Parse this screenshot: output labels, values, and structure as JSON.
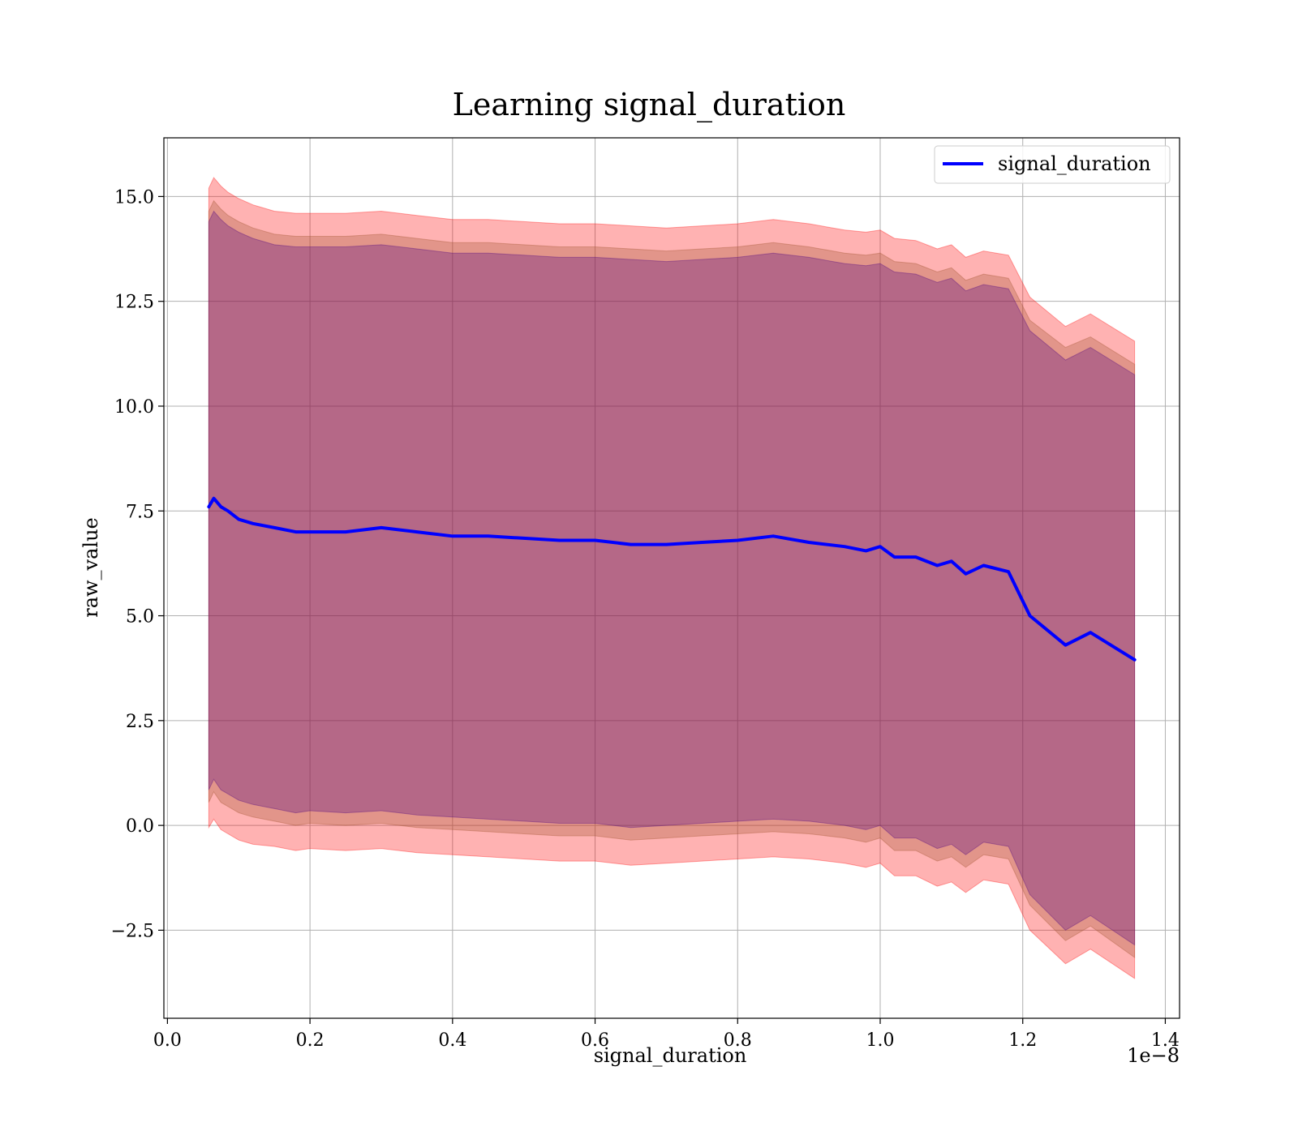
{
  "chart_data": {
    "type": "line",
    "title": "Learning signal_duration",
    "xlabel": "signal_duration",
    "ylabel": "raw_value",
    "x_offset_text": "1e−8",
    "xlim": [
      -0.005,
      1.42
    ],
    "ylim": [
      -4.6,
      16.4
    ],
    "x_ticks": [
      0.0,
      0.2,
      0.4,
      0.6,
      0.8,
      1.0,
      1.2,
      1.4
    ],
    "x_tick_labels": [
      "0.0",
      "0.2",
      "0.4",
      "0.6",
      "0.8",
      "1.0",
      "1.2",
      "1.4"
    ],
    "y_ticks": [
      -2.5,
      0.0,
      2.5,
      5.0,
      7.5,
      10.0,
      12.5,
      15.0
    ],
    "y_tick_labels": [
      "−2.5",
      "0.0",
      "2.5",
      "5.0",
      "7.5",
      "10.0",
      "12.5",
      "15.0"
    ],
    "grid": true,
    "legend": {
      "position": "top-right",
      "entries": [
        "signal_duration"
      ]
    },
    "colors": {
      "line": "#0000ff",
      "band_outer": "#ff0000",
      "band_middle": "#a0522d",
      "band_inner": "#4b0082",
      "grid": "#b0b0b0"
    },
    "series": [
      {
        "name": "signal_duration",
        "x": [
          0.058,
          0.065,
          0.075,
          0.085,
          0.1,
          0.12,
          0.15,
          0.18,
          0.2,
          0.25,
          0.3,
          0.35,
          0.4,
          0.45,
          0.5,
          0.55,
          0.6,
          0.65,
          0.7,
          0.75,
          0.8,
          0.85,
          0.9,
          0.95,
          0.98,
          1.0,
          1.02,
          1.05,
          1.08,
          1.1,
          1.12,
          1.145,
          1.18,
          1.21,
          1.26,
          1.295,
          1.357
        ],
        "y": [
          7.6,
          7.8,
          7.6,
          7.5,
          7.3,
          7.2,
          7.1,
          7.0,
          7.0,
          7.0,
          7.1,
          7.0,
          6.9,
          6.9,
          6.85,
          6.8,
          6.8,
          6.7,
          6.7,
          6.75,
          6.8,
          6.9,
          6.75,
          6.65,
          6.55,
          6.65,
          6.4,
          6.4,
          6.2,
          6.3,
          6.0,
          6.2,
          6.05,
          5.0,
          4.3,
          4.6,
          3.95
        ]
      }
    ],
    "bands": [
      {
        "level": "outer",
        "lower": [
          -0.05,
          0.15,
          -0.1,
          -0.2,
          -0.35,
          -0.45,
          -0.5,
          -0.6,
          -0.55,
          -0.6,
          -0.55,
          -0.65,
          -0.7,
          -0.75,
          -0.8,
          -0.85,
          -0.85,
          -0.95,
          -0.9,
          -0.85,
          -0.8,
          -0.75,
          -0.8,
          -0.9,
          -1.0,
          -0.9,
          -1.2,
          -1.2,
          -1.45,
          -1.35,
          -1.6,
          -1.3,
          -1.4,
          -2.5,
          -3.3,
          -2.95,
          -3.65
        ],
        "upper": [
          15.2,
          15.45,
          15.25,
          15.1,
          14.95,
          14.8,
          14.65,
          14.6,
          14.6,
          14.6,
          14.65,
          14.55,
          14.45,
          14.45,
          14.4,
          14.35,
          14.35,
          14.3,
          14.25,
          14.3,
          14.35,
          14.45,
          14.35,
          14.2,
          14.15,
          14.2,
          14.0,
          13.95,
          13.75,
          13.85,
          13.55,
          13.7,
          13.6,
          12.6,
          11.9,
          12.2,
          11.55
        ]
      },
      {
        "level": "middle",
        "lower": [
          0.55,
          0.8,
          0.55,
          0.45,
          0.3,
          0.2,
          0.1,
          0.0,
          0.05,
          0.0,
          0.05,
          -0.05,
          -0.1,
          -0.15,
          -0.2,
          -0.25,
          -0.25,
          -0.35,
          -0.3,
          -0.25,
          -0.2,
          -0.15,
          -0.2,
          -0.3,
          -0.4,
          -0.3,
          -0.6,
          -0.6,
          -0.85,
          -0.75,
          -1.0,
          -0.7,
          -0.8,
          -1.9,
          -2.75,
          -2.4,
          -3.15
        ],
        "upper": [
          14.65,
          14.9,
          14.7,
          14.55,
          14.4,
          14.25,
          14.1,
          14.05,
          14.05,
          14.05,
          14.1,
          14.0,
          13.9,
          13.9,
          13.85,
          13.8,
          13.8,
          13.75,
          13.7,
          13.75,
          13.8,
          13.9,
          13.8,
          13.65,
          13.6,
          13.65,
          13.45,
          13.4,
          13.2,
          13.3,
          13.0,
          13.15,
          13.05,
          12.05,
          11.4,
          11.65,
          11.0
        ]
      },
      {
        "level": "inner",
        "lower": [
          0.85,
          1.1,
          0.85,
          0.75,
          0.6,
          0.5,
          0.4,
          0.3,
          0.35,
          0.3,
          0.35,
          0.25,
          0.2,
          0.15,
          0.1,
          0.05,
          0.05,
          -0.05,
          0.0,
          0.05,
          0.1,
          0.15,
          0.1,
          0.0,
          -0.1,
          0.0,
          -0.3,
          -0.3,
          -0.55,
          -0.45,
          -0.7,
          -0.4,
          -0.5,
          -1.65,
          -2.5,
          -2.15,
          -2.85
        ],
        "upper": [
          14.4,
          14.65,
          14.45,
          14.3,
          14.15,
          14.0,
          13.85,
          13.8,
          13.8,
          13.8,
          13.85,
          13.75,
          13.65,
          13.65,
          13.6,
          13.55,
          13.55,
          13.5,
          13.45,
          13.5,
          13.55,
          13.65,
          13.55,
          13.4,
          13.35,
          13.4,
          13.2,
          13.15,
          12.95,
          13.05,
          12.75,
          12.9,
          12.8,
          11.8,
          11.1,
          11.4,
          10.75
        ]
      }
    ]
  }
}
